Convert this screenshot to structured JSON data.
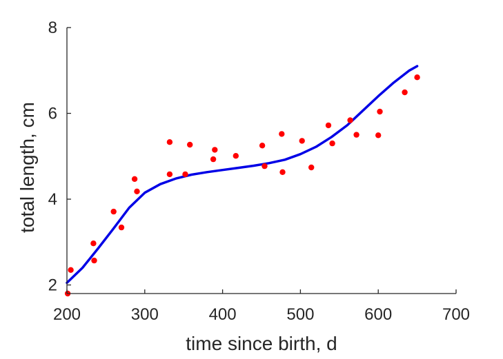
{
  "chart_data": {
    "type": "scatter",
    "title": "",
    "xlabel": "time since birth, d",
    "ylabel": "total length, cm",
    "xlim": [
      200,
      700
    ],
    "ylim": [
      1.8,
      8
    ],
    "x_ticks": [
      "200",
      "300",
      "400",
      "500",
      "600",
      "700"
    ],
    "y_ticks": [
      "2",
      "4",
      "6",
      "8"
    ],
    "grid": false,
    "legend": "none",
    "colors": {
      "points": "#ff0000",
      "curve": "#0000e6",
      "axis": "#262626"
    },
    "series": [
      {
        "type": "scatter",
        "points": [
          [
            201,
            1.8
          ],
          [
            205,
            2.35
          ],
          [
            234,
            2.97
          ],
          [
            235,
            2.57
          ],
          [
            260,
            3.71
          ],
          [
            270,
            3.34
          ],
          [
            287,
            4.47
          ],
          [
            290,
            4.18
          ],
          [
            332,
            5.33
          ],
          [
            332,
            4.58
          ],
          [
            352,
            4.58
          ],
          [
            358,
            5.27
          ],
          [
            388,
            4.93
          ],
          [
            390,
            5.15
          ],
          [
            417,
            5.01
          ],
          [
            451,
            5.25
          ],
          [
            454,
            4.77
          ],
          [
            476,
            5.52
          ],
          [
            477,
            4.63
          ],
          [
            502,
            5.36
          ],
          [
            514,
            4.74
          ],
          [
            536,
            5.72
          ],
          [
            541,
            5.3
          ],
          [
            564,
            5.84
          ],
          [
            572,
            5.5
          ],
          [
            600,
            5.49
          ],
          [
            602,
            6.04
          ],
          [
            634,
            6.49
          ],
          [
            650,
            6.84
          ]
        ]
      },
      {
        "type": "line",
        "points": [
          [
            200,
            2.05
          ],
          [
            220,
            2.4
          ],
          [
            240,
            2.85
          ],
          [
            260,
            3.32
          ],
          [
            280,
            3.8
          ],
          [
            300,
            4.15
          ],
          [
            320,
            4.35
          ],
          [
            340,
            4.48
          ],
          [
            360,
            4.57
          ],
          [
            380,
            4.63
          ],
          [
            400,
            4.68
          ],
          [
            420,
            4.73
          ],
          [
            440,
            4.78
          ],
          [
            460,
            4.84
          ],
          [
            480,
            4.92
          ],
          [
            500,
            5.05
          ],
          [
            520,
            5.22
          ],
          [
            540,
            5.45
          ],
          [
            560,
            5.72
          ],
          [
            580,
            6.06
          ],
          [
            600,
            6.4
          ],
          [
            620,
            6.72
          ],
          [
            640,
            7.0
          ],
          [
            650,
            7.1
          ]
        ]
      }
    ]
  }
}
